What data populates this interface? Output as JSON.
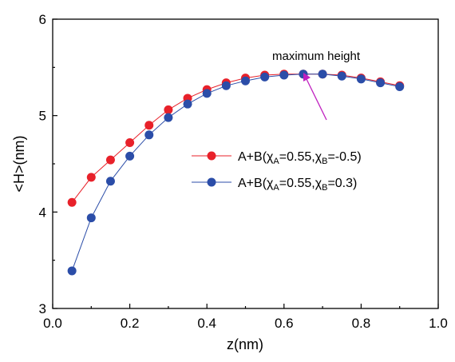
{
  "chart_data": {
    "type": "line",
    "xlabel": "z(nm)",
    "ylabel": "<H>(nm)",
    "xlim": [
      0.0,
      1.0
    ],
    "ylim": [
      3,
      6
    ],
    "x_ticks": [
      0.0,
      0.2,
      0.4,
      0.6,
      0.8,
      1.0
    ],
    "x_tick_labels": [
      "0.0",
      "0.2",
      "0.4",
      "0.6",
      "0.8",
      "1.0"
    ],
    "y_ticks": [
      3,
      4,
      5,
      6
    ],
    "y_tick_labels": [
      "3",
      "4",
      "5",
      "6"
    ],
    "grid": false,
    "legend_position": "center-right",
    "annotation": {
      "text": "maximum height",
      "x": 0.65,
      "y": 5.43
    },
    "series": [
      {
        "name": "A+B(χA=0.55,χB=-0.5)",
        "legend_parts": {
          "prefix": "A+B(χ",
          "sub1": "A",
          "mid": "=0.55,χ",
          "sub2": "B",
          "suffix": "=-0.5)"
        },
        "color": "#e8212a",
        "x": [
          0.05,
          0.1,
          0.15,
          0.2,
          0.25,
          0.3,
          0.35,
          0.4,
          0.45,
          0.5,
          0.55,
          0.6,
          0.65,
          0.7,
          0.75,
          0.8,
          0.85,
          0.9
        ],
        "y": [
          4.1,
          4.36,
          4.54,
          4.72,
          4.9,
          5.06,
          5.18,
          5.27,
          5.34,
          5.39,
          5.42,
          5.43,
          5.43,
          5.43,
          5.42,
          5.39,
          5.35,
          5.31
        ]
      },
      {
        "name": "A+B(χA=0.55,χB=0.3)",
        "legend_parts": {
          "prefix": "A+B(χ",
          "sub1": "A",
          "mid": "=0.55,χ",
          "sub2": "B",
          "suffix": "=0.3)"
        },
        "color": "#2b4da8",
        "x": [
          0.05,
          0.1,
          0.15,
          0.2,
          0.25,
          0.3,
          0.35,
          0.4,
          0.45,
          0.5,
          0.55,
          0.6,
          0.65,
          0.7,
          0.75,
          0.8,
          0.85,
          0.9
        ],
        "y": [
          3.39,
          3.94,
          4.32,
          4.58,
          4.8,
          4.98,
          5.12,
          5.23,
          5.31,
          5.36,
          5.4,
          5.42,
          5.43,
          5.43,
          5.41,
          5.38,
          5.34,
          5.3
        ]
      }
    ]
  }
}
